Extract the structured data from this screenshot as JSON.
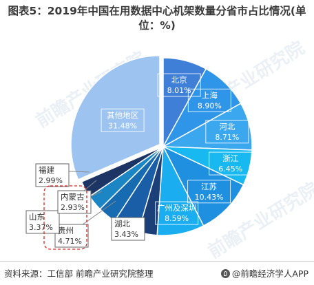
{
  "title": "图表5：2019年中国在用数据中心机架数量分省市占比情况(单位：%)",
  "source": "资料来源：工信部 前瞻产业研究院整理",
  "brand": "@前瞻经济学人APP",
  "watermark": "前瞻产业研究院",
  "colors": {
    "北京": "#3f7fd8",
    "上海": "#2f95e8",
    "河北": "#3aa7ee",
    "浙江": "#18b9f0",
    "江苏": "#1f8fe0",
    "广州及深圳": "#1aaef0",
    "湖北": "#1b3f78",
    "贵州": "#1a5ea8",
    "山东": "#176bb0",
    "内蒙古": "#1c85c4",
    "福建": "#1d3564",
    "其他地区": "#9dc3f0"
  },
  "chart_data": {
    "type": "pie",
    "title": "图表5：2019年中国在用数据中心机架数量分省市占比情况(单位：%)",
    "unit": "%",
    "slices": [
      {
        "label": "北京",
        "value": 8.01,
        "display": "8.01%"
      },
      {
        "label": "上海",
        "value": 8.9,
        "display": "8.90%"
      },
      {
        "label": "河北",
        "value": 8.71,
        "display": "8.71%"
      },
      {
        "label": "浙江",
        "value": 6.45,
        "display": "6.45%"
      },
      {
        "label": "江苏",
        "value": 10.43,
        "display": "10.43%"
      },
      {
        "label": "广州及深圳",
        "value": 8.59,
        "display": "8.59%"
      },
      {
        "label": "湖北",
        "value": 3.43,
        "display": "3.43%"
      },
      {
        "label": "贵州",
        "value": 4.71,
        "display": "4.71%"
      },
      {
        "label": "山东",
        "value": 3.37,
        "display": "3.37%"
      },
      {
        "label": "内蒙古",
        "value": 2.93,
        "display": "2.93%"
      },
      {
        "label": "福建",
        "value": 2.99,
        "display": "2.99%"
      },
      {
        "label": "其他地区",
        "value": 31.48,
        "display": "31.48%"
      }
    ]
  }
}
